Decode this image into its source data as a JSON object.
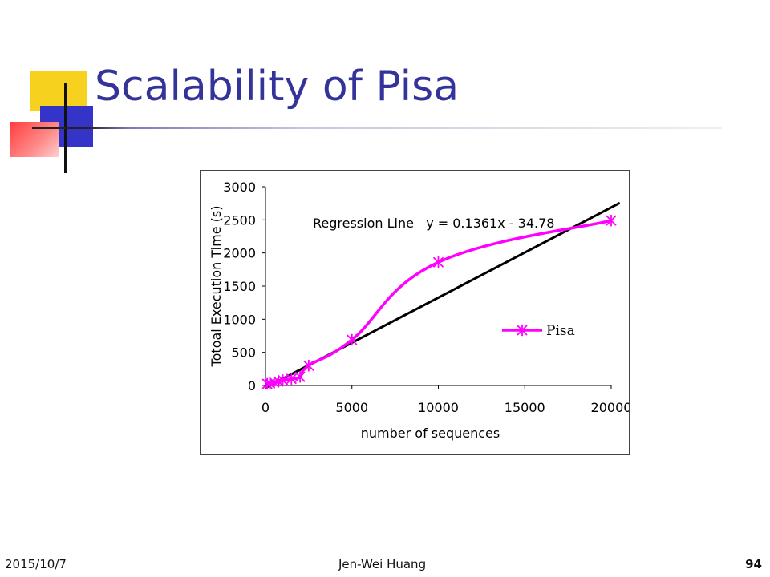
{
  "slide": {
    "title": "Scalability of Pisa",
    "footer_date": "2015/10/7",
    "footer_author": "Jen-Wei Huang",
    "page_number": "94"
  },
  "colors": {
    "title": "#33339a",
    "series": "#ff00ff",
    "regression": "#000000",
    "accent_yellow": "#f6d21e",
    "accent_blue": "#3434c8",
    "accent_red": "#ff3c3c"
  },
  "chart_data": {
    "type": "line",
    "title": "",
    "xlabel": "number of sequences",
    "ylabel": "Totoal Execution Time (s)",
    "xlim": [
      0,
      20000
    ],
    "ylim": [
      0,
      3000
    ],
    "x_ticks": [
      "0",
      "5000",
      "10000",
      "15000",
      "20000"
    ],
    "y_ticks": [
      "0",
      "500",
      "1000",
      "1500",
      "2000",
      "2500",
      "3000"
    ],
    "series": [
      {
        "name": "Pisa",
        "marker": "star",
        "x": [
          100,
          250,
          500,
          750,
          1000,
          1500,
          2000,
          2500,
          5000,
          10000,
          20000
        ],
        "y": [
          25,
          30,
          45,
          60,
          80,
          100,
          130,
          300,
          690,
          1860,
          2490
        ]
      }
    ],
    "regression": {
      "label": "Regression Line   y = 0.1361x - 34.78",
      "slope": 0.1361,
      "intercept": -34.78
    },
    "grid": false,
    "legend": "right"
  }
}
